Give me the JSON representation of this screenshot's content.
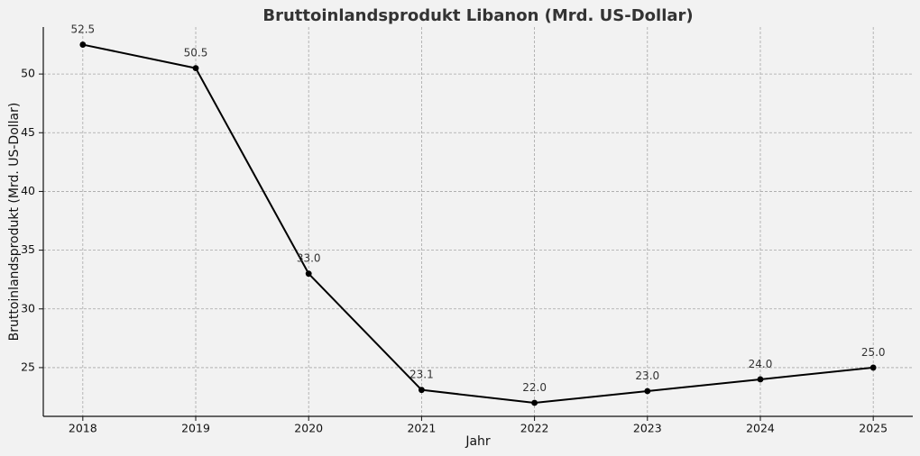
{
  "chart_data": {
    "type": "line",
    "title": "Bruttoinlandsprodukt Libanon (Mrd. US-Dollar)",
    "xlabel": "Jahr",
    "ylabel": "Bruttoinlandsprodukt (Mrd. US-Dollar)",
    "x": [
      2018,
      2019,
      2020,
      2021,
      2022,
      2023,
      2024,
      2025
    ],
    "series": [
      {
        "values": [
          52.5,
          50.5,
          33.0,
          23.1,
          22.0,
          23.0,
          24.0,
          25.0
        ]
      }
    ],
    "data_labels": [
      "52.5",
      "50.5",
      "33.0",
      "23.1",
      "22.0",
      "23.0",
      "24.0",
      "25.0"
    ],
    "x_ticks": [
      "2018",
      "2019",
      "2020",
      "2021",
      "2022",
      "2023",
      "2024",
      "2025"
    ],
    "y_ticks": [
      25,
      30,
      35,
      40,
      45,
      50
    ],
    "y_tick_labels": [
      "25",
      "30",
      "35",
      "40",
      "45",
      "50"
    ],
    "xlim": [
      2017.65,
      2025.35
    ],
    "ylim": [
      20.85,
      54.0
    ],
    "grid": true,
    "colors": {
      "line": "#000000",
      "background": "#f2f2f2",
      "grid": "#a6a6a6"
    }
  }
}
